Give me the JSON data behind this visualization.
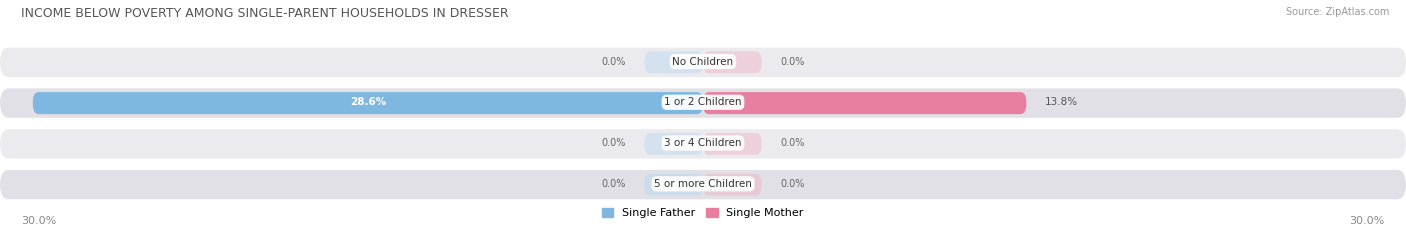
{
  "title": "INCOME BELOW POVERTY AMONG SINGLE-PARENT HOUSEHOLDS IN DRESSER",
  "source": "Source: ZipAtlas.com",
  "categories": [
    "No Children",
    "1 or 2 Children",
    "3 or 4 Children",
    "5 or more Children"
  ],
  "single_father": [
    0.0,
    28.6,
    0.0,
    0.0
  ],
  "single_mother": [
    0.0,
    13.8,
    0.0,
    0.0
  ],
  "max_val": 30.0,
  "father_color": "#7eb8e0",
  "mother_color": "#e87fa0",
  "father_color_light": "#b8d8f0",
  "mother_color_light": "#f0b0c4",
  "row_bg": "#e8e8ec",
  "row_bg2": "#d8d8de",
  "title_color": "#444444",
  "source_color": "#888888",
  "value_color_white": "#ffffff",
  "value_color_dark": "#666666",
  "legend_father": "Single Father",
  "legend_mother": "Single Mother",
  "xlim_left": -30.0,
  "xlim_right": 30.0,
  "stub_size": 2.5,
  "figwidth": 14.06,
  "figheight": 2.33
}
